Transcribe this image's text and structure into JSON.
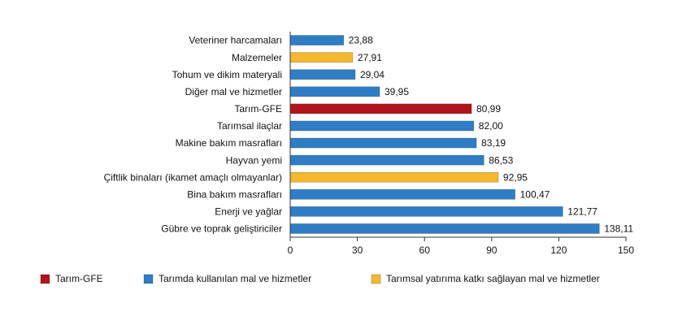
{
  "chart_data": {
    "type": "bar",
    "orientation": "horizontal",
    "categories": [
      "Veteriner harcamaları",
      "Malzemeler",
      "Tohum ve dikim materyali",
      "Diğer mal ve hizmetler",
      "Tarım-GFE",
      "Tarımsal ilaçlar",
      "Makine bakım masrafları",
      "Hayvan yemi",
      "Çiftlik binaları (ikamet amaçlı olmayanlar)",
      "Bina bakım masrafları",
      "Enerji ve yağlar",
      "Gübre ve toprak geliştiriciler"
    ],
    "series": [
      {
        "name": "Tarım-GFE",
        "color": "#b0151b",
        "values": [
          null,
          null,
          null,
          null,
          80.99,
          null,
          null,
          null,
          null,
          null,
          null,
          null
        ],
        "value_labels": [
          null,
          null,
          null,
          null,
          "80,99",
          null,
          null,
          null,
          null,
          null,
          null,
          null
        ]
      },
      {
        "name": "Tarımda kullanılan mal ve hizmetler",
        "color": "#2f7dc4",
        "values": [
          23.88,
          null,
          29.04,
          39.95,
          null,
          82.0,
          83.19,
          86.53,
          null,
          100.47,
          121.77,
          138.11
        ],
        "value_labels": [
          "23,88",
          null,
          "29,04",
          "39,95",
          null,
          "82,00",
          "83,19",
          "86,53",
          null,
          "100,47",
          "121,77",
          "138,11"
        ]
      },
      {
        "name": "Tarımsal yatırıma katkı sağlayan mal ve hizmetler",
        "color": "#f5b82e",
        "values": [
          null,
          27.91,
          null,
          null,
          null,
          null,
          null,
          null,
          92.95,
          null,
          null,
          null
        ],
        "value_labels": [
          null,
          "27,91",
          null,
          null,
          null,
          null,
          null,
          null,
          "92,95",
          null,
          null,
          null
        ]
      }
    ],
    "xlim": [
      0,
      150
    ],
    "xticks": [
      0,
      30,
      60,
      90,
      120,
      150
    ],
    "legend": "bottom"
  }
}
